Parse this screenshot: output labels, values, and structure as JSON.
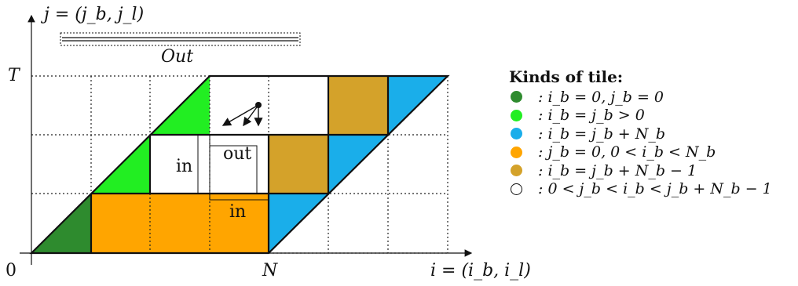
{
  "axes": {
    "y_label": "j = (j_b, j_l)",
    "x_label": "i = (i_b, i_l)",
    "origin": "0",
    "x_tick": "N",
    "y_tick": "T"
  },
  "regions": {
    "out_top": "Out",
    "in_left": "in",
    "out_center": "out",
    "in_bottom": "in"
  },
  "legend": {
    "title": "Kinds of tile:",
    "items": [
      {
        "color": "#2e8b2e",
        "text": ": i_b = 0, j_b = 0"
      },
      {
        "color": "#22ee22",
        "text": ": i_b = j_b > 0"
      },
      {
        "color": "#1aaeea",
        "text": ": i_b = j_b + N_b"
      },
      {
        "color": "#ffa500",
        "text": ": j_b = 0, 0 < i_b < N_b"
      },
      {
        "color": "#d4a22a",
        "text": ": i_b = j_b + N_b − 1"
      },
      {
        "color": "#ffffff",
        "text": ": 0 < j_b < i_b < j_b + N_b − 1"
      }
    ]
  }
}
